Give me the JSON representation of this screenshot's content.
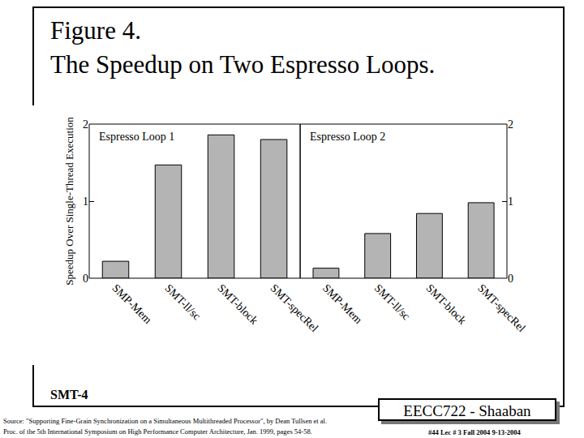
{
  "slide": {
    "title": [
      "Figure 4.",
      "The Speedup on Two Espresso Loops."
    ],
    "note": "SMT-4",
    "source": [
      "Source: \"Supporting Fine-Grain Synchronization on a Simultaneous Multithreaded Processor\", by Dean Tullsen et al.",
      "Proc. of the 5th International Symposium on High Performance Computer Architecture, Jan. 1999, pages 54-58."
    ],
    "badge": "EECC722 - Shaaban",
    "footer": "#44 Lec # 3 Fall 2004 9-13-2004"
  },
  "chart_data": [
    {
      "type": "bar",
      "title": "Espresso Loop 1",
      "y_label": "Speedup Over Single-Thread Execution",
      "categories": [
        "SMP-Mem",
        "SMT-ll/sc",
        "SMT-block",
        "SMT-specRel"
      ],
      "values": [
        0.22,
        1.47,
        1.86,
        1.8
      ],
      "color": "#b4b4b4",
      "ylim": [
        0,
        2
      ],
      "yticks": [
        0,
        1,
        2
      ],
      "grid": false
    },
    {
      "type": "bar",
      "title": "Espresso Loop 2",
      "categories": [
        "SMP-Mem",
        "SMT-ll/sc",
        "SMT-block",
        "SMT-specRel"
      ],
      "values": [
        0.13,
        0.58,
        0.84,
        0.98
      ],
      "color": "#b4b4b4",
      "ylim": [
        0,
        2
      ],
      "yticks": [
        0,
        1,
        2
      ],
      "grid": false
    }
  ]
}
